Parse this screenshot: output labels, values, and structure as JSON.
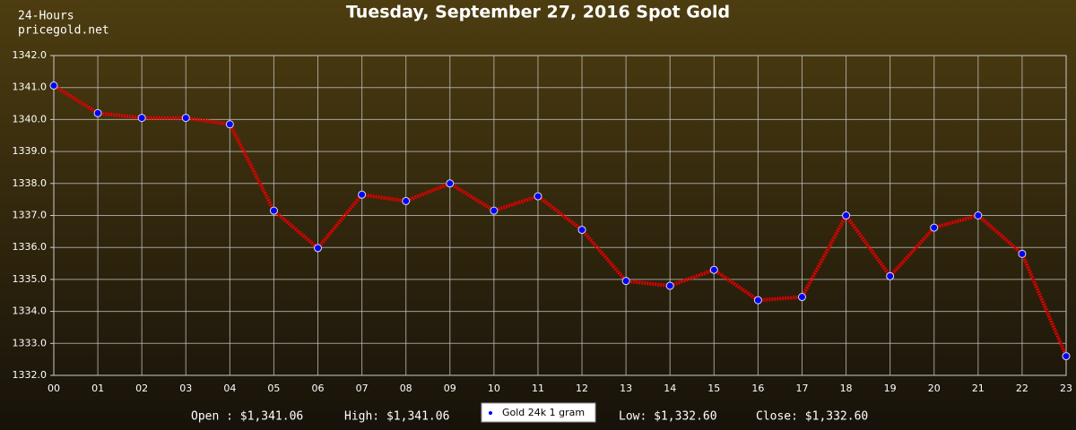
{
  "chart_data": {
    "type": "line",
    "title": "Tuesday, September 27, 2016 Spot Gold",
    "subtitle": [
      "24-Hours",
      "pricegold.net"
    ],
    "categories": [
      "00",
      "01",
      "02",
      "03",
      "04",
      "05",
      "06",
      "07",
      "08",
      "09",
      "10",
      "11",
      "12",
      "13",
      "14",
      "15",
      "16",
      "17",
      "18",
      "19",
      "20",
      "21",
      "22",
      "23"
    ],
    "series": [
      {
        "name": "Gold 24k 1 gram",
        "color": "#e00000",
        "marker_color": "#0000ff",
        "values": [
          1341.06,
          1340.2,
          1340.05,
          1340.05,
          1339.85,
          1337.15,
          1335.98,
          1337.65,
          1337.45,
          1338.0,
          1337.15,
          1337.6,
          1336.55,
          1334.95,
          1334.8,
          1335.3,
          1334.35,
          1334.45,
          1337.0,
          1335.1,
          1336.62,
          1337.0,
          1335.8,
          1332.6
        ]
      }
    ],
    "ylim": [
      1332,
      1342
    ],
    "yticks": [
      {
        "value": 1332,
        "label": "1332.0"
      },
      {
        "value": 1333,
        "label": "1333.0"
      },
      {
        "value": 1334,
        "label": "1334.0"
      },
      {
        "value": 1335,
        "label": "1335.0"
      },
      {
        "value": 1336,
        "label": "1336.0"
      },
      {
        "value": 1337,
        "label": "1337.0"
      },
      {
        "value": 1338,
        "label": "1338.0"
      },
      {
        "value": 1339,
        "label": "1339.0"
      },
      {
        "value": 1340,
        "label": "1340.0"
      },
      {
        "value": 1341,
        "label": "1341.0"
      },
      {
        "value": 1342,
        "label": "1342.0"
      }
    ],
    "grid": true,
    "legend": "bottom",
    "stats": [
      "Open : $1,341.06",
      "High: $1,341.06",
      "Low: $1,332.60",
      "Close: $1,332.60"
    ]
  }
}
